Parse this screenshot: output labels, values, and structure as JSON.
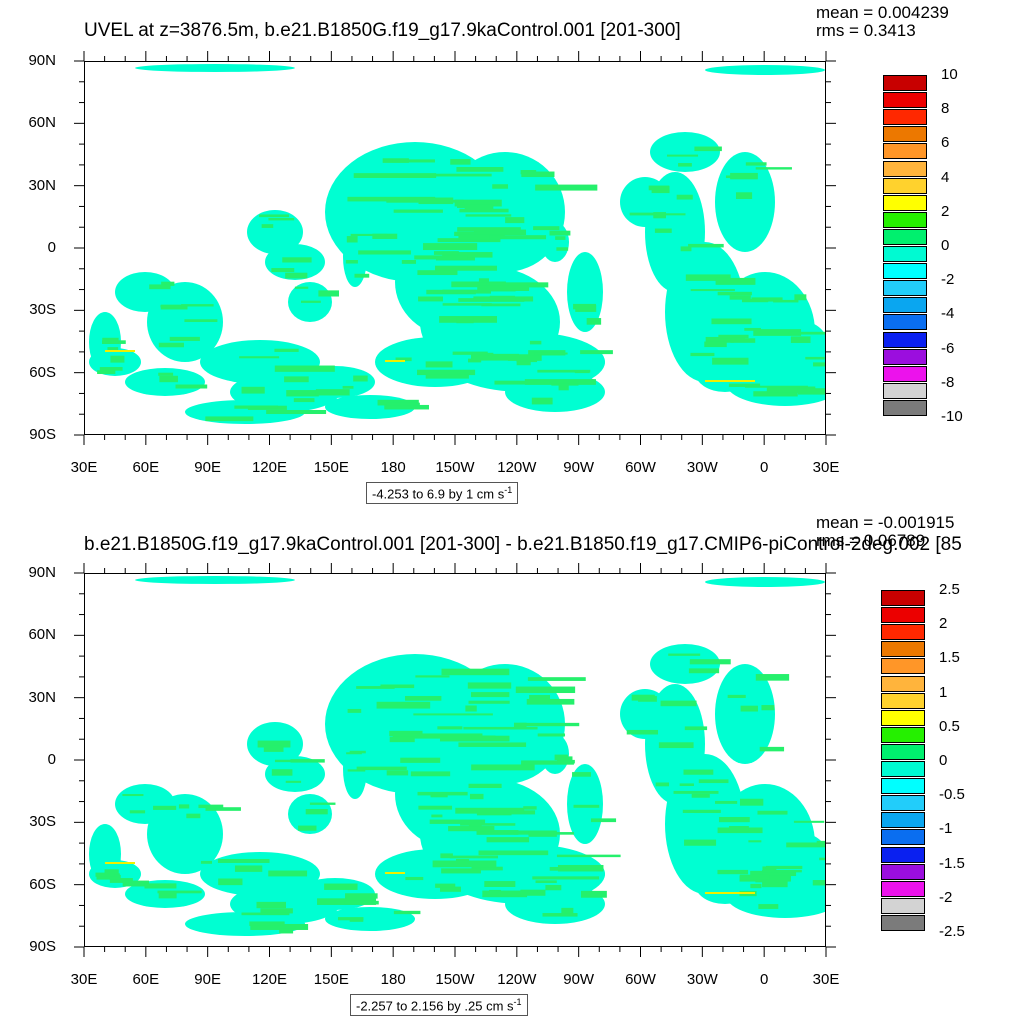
{
  "panels": [
    {
      "title": "UVEL at z=3876.5m, b.e21.B1850G.f19_g17.9kaControl.001 [201-300]",
      "mean_text": "mean = 0.004239",
      "rms_text": "rms = 0.3413",
      "info_text": "-4.253 to 6.9 by 1 cm s",
      "info_sup": "-1",
      "legend_labels": [
        "10",
        "8",
        "6",
        "4",
        "2",
        "0",
        "-2",
        "-4",
        "-6",
        "-8",
        "-10"
      ],
      "field_colors": {
        "main": "#00ffd2",
        "patch": "#25f06c",
        "warm": "#f0f000"
      }
    },
    {
      "title": "b.e21.B1850G.f19_g17.9kaControl.001 [201-300] - b.e21.B1850.f19_g17.CMIP6-piControl-2deg.002 [85",
      "mean_text": "mean = -0.001915",
      "rms_text": "rms = 0.06789",
      "info_text": "-2.257 to 2.156 by .25 cm s",
      "info_sup": "-1",
      "legend_labels": [
        "2.5",
        "2",
        "1.5",
        "1",
        "0.5",
        "0",
        "-0.5",
        "-1",
        "-1.5",
        "-2",
        "-2.5"
      ],
      "field_colors": {
        "main": "#00ffd2",
        "patch": "#25f06c",
        "warm": "#f0f000"
      }
    }
  ],
  "axes": {
    "y_ticks": [
      "90N",
      "60N",
      "30N",
      "0",
      "30S",
      "60S",
      "90S"
    ],
    "x_ticks": [
      "30E",
      "60E",
      "90E",
      "120E",
      "150E",
      "180",
      "150W",
      "120W",
      "90W",
      "60W",
      "30W",
      "0",
      "30E"
    ]
  },
  "colorbar_colors": [
    "#7b7b7b",
    "#d3d3d3",
    "#ec12ec",
    "#9b0ede",
    "#0a20f0",
    "#0a6ef0",
    "#0aa6f0",
    "#22cdfa",
    "#00ffff",
    "#00fad2",
    "#00f06e",
    "#25f000",
    "#ffff00",
    "#ffd22d",
    "#ffb43c",
    "#ff9628",
    "#ec7800",
    "#ff2800",
    "#ec0000",
    "#c80000"
  ],
  "chart_data": [
    {
      "type": "heatmap",
      "title": "UVEL at z=3876.5m, b.e21.B1850G.f19_g17.9kaControl.001 [201-300]",
      "xlabel": "",
      "ylabel": "",
      "x_ticks": [
        "30E",
        "60E",
        "90E",
        "120E",
        "150E",
        "180",
        "150W",
        "120W",
        "90W",
        "60W",
        "30W",
        "0",
        "30E"
      ],
      "y_ticks": [
        "90N",
        "60N",
        "30N",
        "0",
        "30S",
        "60S",
        "90S"
      ],
      "contour_levels": [
        -10,
        -8,
        -6,
        -4,
        -2,
        0,
        2,
        4,
        6,
        8,
        10
      ],
      "range": "-4.253 to 6.9 by 1 cm s-1",
      "mean": 0.004239,
      "rms": 0.3413
    },
    {
      "type": "heatmap",
      "title": "b.e21.B1850G.f19_g17.9kaControl.001 [201-300] - b.e21.B1850.f19_g17.CMIP6-piControl-2deg.002 [85",
      "xlabel": "",
      "ylabel": "",
      "x_ticks": [
        "30E",
        "60E",
        "90E",
        "120E",
        "150E",
        "180",
        "150W",
        "120W",
        "90W",
        "60W",
        "30W",
        "0",
        "30E"
      ],
      "y_ticks": [
        "90N",
        "60N",
        "30N",
        "0",
        "30S",
        "60S",
        "90S"
      ],
      "contour_levels": [
        -2.5,
        -2,
        -1.5,
        -1,
        -0.5,
        0,
        0.5,
        1,
        1.5,
        2,
        2.5
      ],
      "range": "-2.257 to 2.156 by .25 cm s-1",
      "mean": -0.001915,
      "rms": 0.06789
    }
  ]
}
